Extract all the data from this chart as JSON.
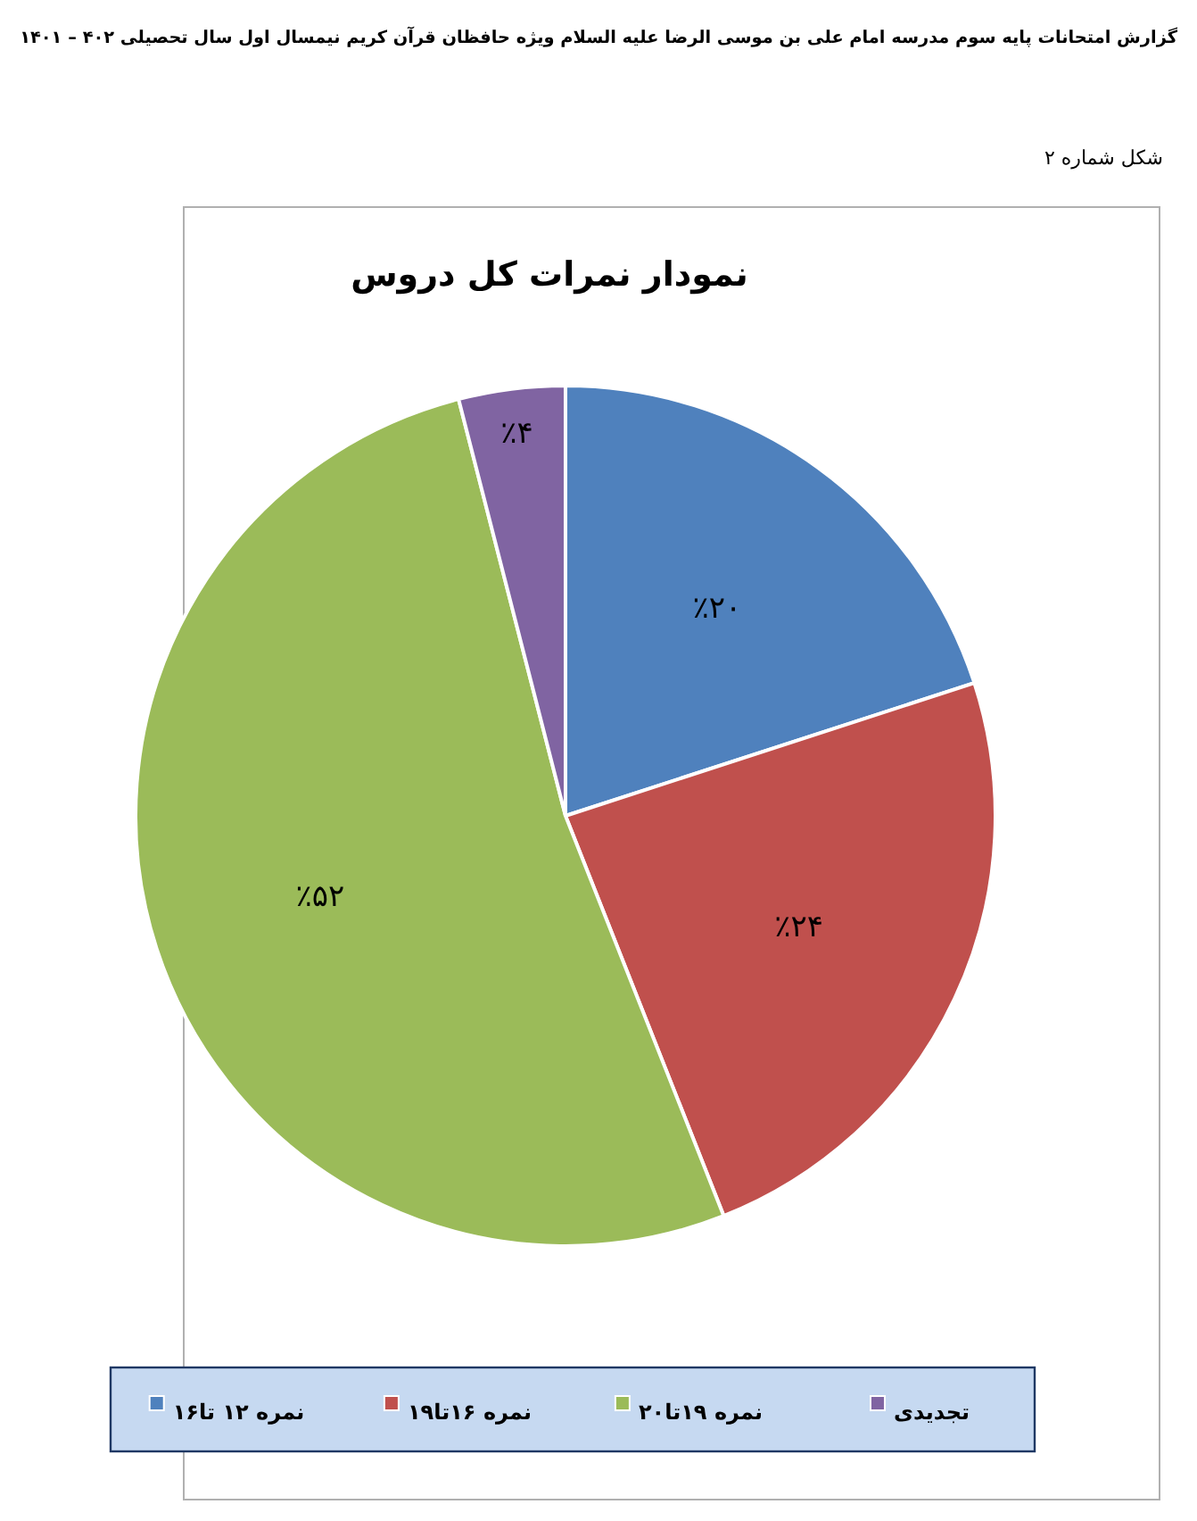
{
  "chart_data": {
    "type": "pie",
    "title": "نمودار نمرات کل دروس",
    "subtitle": "گزارش امتحانات پایه سوم مدرسه امام علی بن موسی الرضا علیه السلام ویژه حافظان قرآن کریم نیمسال اول سال تحصیلی ۴۰۲ – ۱۴۰۱",
    "annotations": [
      "شکل شماره ۲"
    ],
    "categories": [
      "نمره ۱۲ تا۱۶",
      "نمره ۱۶تا۱۹",
      "نمره ۱۹تا۲۰",
      "تجدیدی"
    ],
    "values": [
      20,
      24,
      52,
      4
    ],
    "colors": [
      "#4f81bd",
      "#c0504d",
      "#9bbb59",
      "#8064a2"
    ],
    "value_labels": [
      "٪۲۰",
      "٪۲۴",
      "٪۵۲",
      "٪۴"
    ],
    "legend": "bottom"
  }
}
